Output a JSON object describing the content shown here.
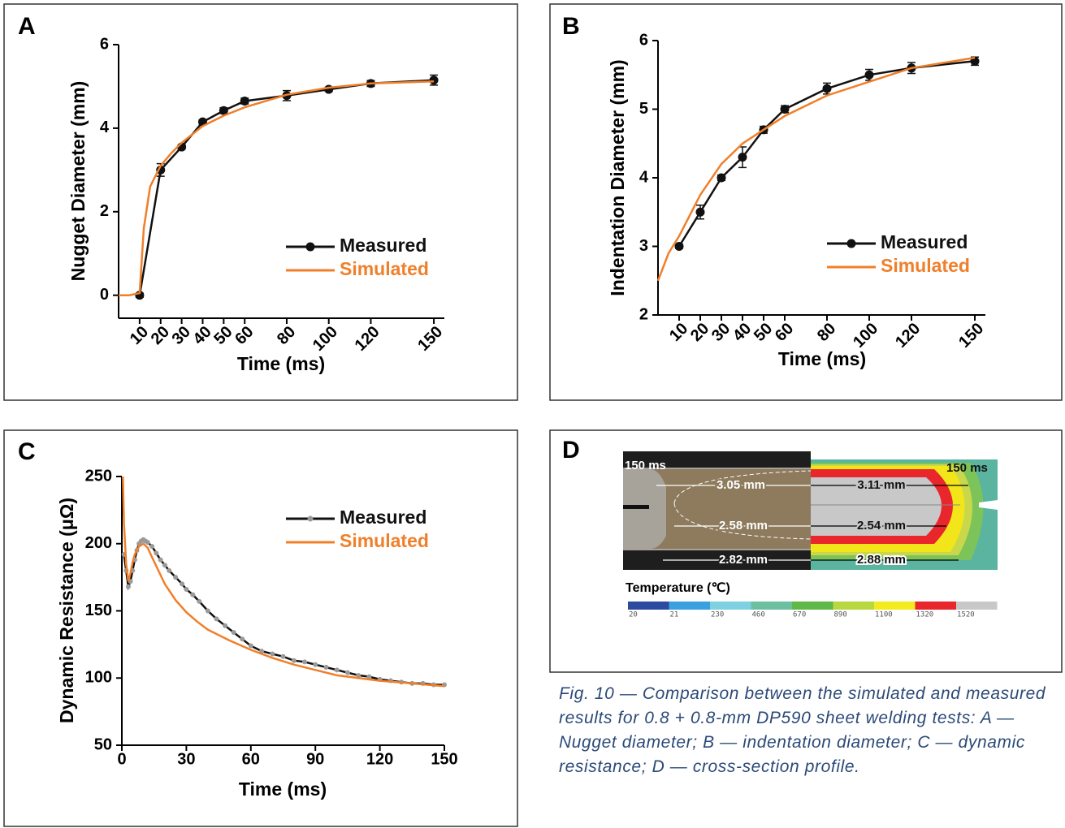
{
  "chart_data": [
    {
      "type": "line",
      "panel": "A",
      "x_label": "Time (ms)",
      "y_label": "Nugget Diameter (mm)",
      "xlim": [
        0,
        155
      ],
      "ylim": [
        -0.55,
        6
      ],
      "xticks": [
        10,
        20,
        30,
        40,
        50,
        60,
        80,
        100,
        120,
        150
      ],
      "yticks": [
        0,
        2,
        4,
        6
      ],
      "xtick_rotation": -45,
      "legend": "lower right",
      "series": [
        {
          "name": "Measured",
          "color": "#111111",
          "marker": true,
          "x": [
            10,
            20,
            30,
            40,
            50,
            60,
            80,
            100,
            120,
            150
          ],
          "values": [
            0,
            3.0,
            3.55,
            4.15,
            4.42,
            4.65,
            4.78,
            4.93,
            5.07,
            5.15
          ],
          "errors": [
            0.05,
            0.15,
            0.05,
            0.05,
            0.07,
            0.07,
            0.12,
            0.05,
            0.07,
            0.12
          ]
        },
        {
          "name": "Simulated",
          "color": "#f07f2a",
          "marker": false,
          "x": [
            0,
            5,
            10,
            12,
            15,
            20,
            25,
            30,
            40,
            50,
            60,
            80,
            100,
            120,
            150
          ],
          "values": [
            0,
            0,
            0.05,
            1.6,
            2.6,
            3.1,
            3.4,
            3.65,
            4.05,
            4.3,
            4.5,
            4.8,
            4.97,
            5.07,
            5.12
          ]
        }
      ]
    },
    {
      "type": "line",
      "panel": "B",
      "x_label": "Time (ms)",
      "y_label": "Indentation Diameter (mm)",
      "xlim": [
        0,
        155
      ],
      "ylim": [
        2,
        6
      ],
      "xticks": [
        10,
        20,
        30,
        40,
        50,
        60,
        80,
        100,
        120,
        150
      ],
      "yticks": [
        2,
        3,
        4,
        5,
        6
      ],
      "xtick_rotation": -45,
      "legend": "lower right",
      "series": [
        {
          "name": "Measured",
          "color": "#111111",
          "marker": true,
          "x": [
            10,
            20,
            30,
            40,
            50,
            60,
            80,
            100,
            120,
            150
          ],
          "values": [
            3.0,
            3.5,
            4.0,
            4.3,
            4.7,
            5.0,
            5.3,
            5.5,
            5.6,
            5.7
          ],
          "errors": [
            0.03,
            0.1,
            0.04,
            0.15,
            0.05,
            0.05,
            0.08,
            0.08,
            0.08,
            0.06
          ]
        },
        {
          "name": "Simulated",
          "color": "#f07f2a",
          "marker": false,
          "x": [
            0,
            5,
            10,
            20,
            30,
            40,
            50,
            60,
            80,
            100,
            120,
            150
          ],
          "values": [
            2.5,
            2.9,
            3.15,
            3.75,
            4.2,
            4.5,
            4.7,
            4.9,
            5.2,
            5.4,
            5.6,
            5.75
          ]
        }
      ]
    },
    {
      "type": "line",
      "panel": "C",
      "x_label": "Time (ms)",
      "y_label": "Dynamic Resistance (μΩ)",
      "xlim": [
        0,
        150
      ],
      "ylim": [
        50,
        250
      ],
      "xticks": [
        0,
        30,
        60,
        90,
        120,
        150
      ],
      "yticks": [
        50,
        100,
        150,
        200,
        250
      ],
      "legend": "upper right",
      "series": [
        {
          "name": "Measured",
          "color": "#111111",
          "marker": true,
          "marker_color": "#9a9a9a",
          "x": [
            1,
            2,
            3,
            4,
            5,
            6,
            7,
            8,
            9,
            10,
            11,
            12,
            14,
            16,
            18,
            20,
            22,
            25,
            28,
            30,
            33,
            36,
            40,
            44,
            48,
            52,
            56,
            60,
            65,
            70,
            75,
            80,
            85,
            90,
            95,
            100,
            105,
            110,
            115,
            120,
            125,
            130,
            135,
            140,
            145,
            150
          ],
          "values": [
            192,
            180,
            168,
            172,
            180,
            188,
            195,
            200,
            202,
            203,
            202,
            201,
            198,
            193,
            188,
            184,
            180,
            175,
            170,
            166,
            162,
            157,
            150,
            144,
            139,
            134,
            129,
            124,
            120,
            118,
            116,
            113,
            112,
            110,
            108,
            106,
            104,
            102,
            101,
            99,
            98,
            97,
            96,
            96,
            95,
            95
          ]
        },
        {
          "name": "Simulated",
          "color": "#f07f2a",
          "marker": false,
          "x": [
            0.5,
            1,
            2,
            3,
            4,
            5,
            6,
            8,
            10,
            12,
            14,
            17,
            20,
            25,
            30,
            35,
            40,
            50,
            60,
            70,
            80,
            90,
            100,
            120,
            150
          ],
          "values": [
            250,
            215,
            185,
            172,
            178,
            186,
            192,
            198,
            200,
            197,
            190,
            180,
            170,
            158,
            149,
            142,
            136,
            128,
            121,
            115,
            110,
            106,
            102,
            98,
            94
          ]
        }
      ]
    }
  ],
  "panel_d": {
    "label": "D",
    "time_left": "150 ms",
    "time_right": "150 ms",
    "dims": [
      "3.05 mm",
      "2.58 mm",
      "2.82 mm",
      "3.11 mm",
      "2.54 mm",
      "2.88 mm"
    ],
    "colorbar": {
      "title": "Temperature (℃)",
      "ticks": [
        20,
        21,
        230,
        460,
        670,
        890,
        1100,
        1320,
        1520
      ],
      "colors": [
        "#2b4aa0",
        "#3aa0e0",
        "#7fd0e0",
        "#6cc0a0",
        "#5fb848",
        "#b8d840",
        "#f4ea20",
        "#e8262b",
        "#c8c8c8"
      ]
    }
  },
  "caption": "Fig. 10 — Comparison between the simulated and measured results for 0.8 + 0.8-mm DP590 sheet welding tests: A — Nugget diameter; B — indentation diameter; C — dynamic resistance; D — cross-section profile."
}
